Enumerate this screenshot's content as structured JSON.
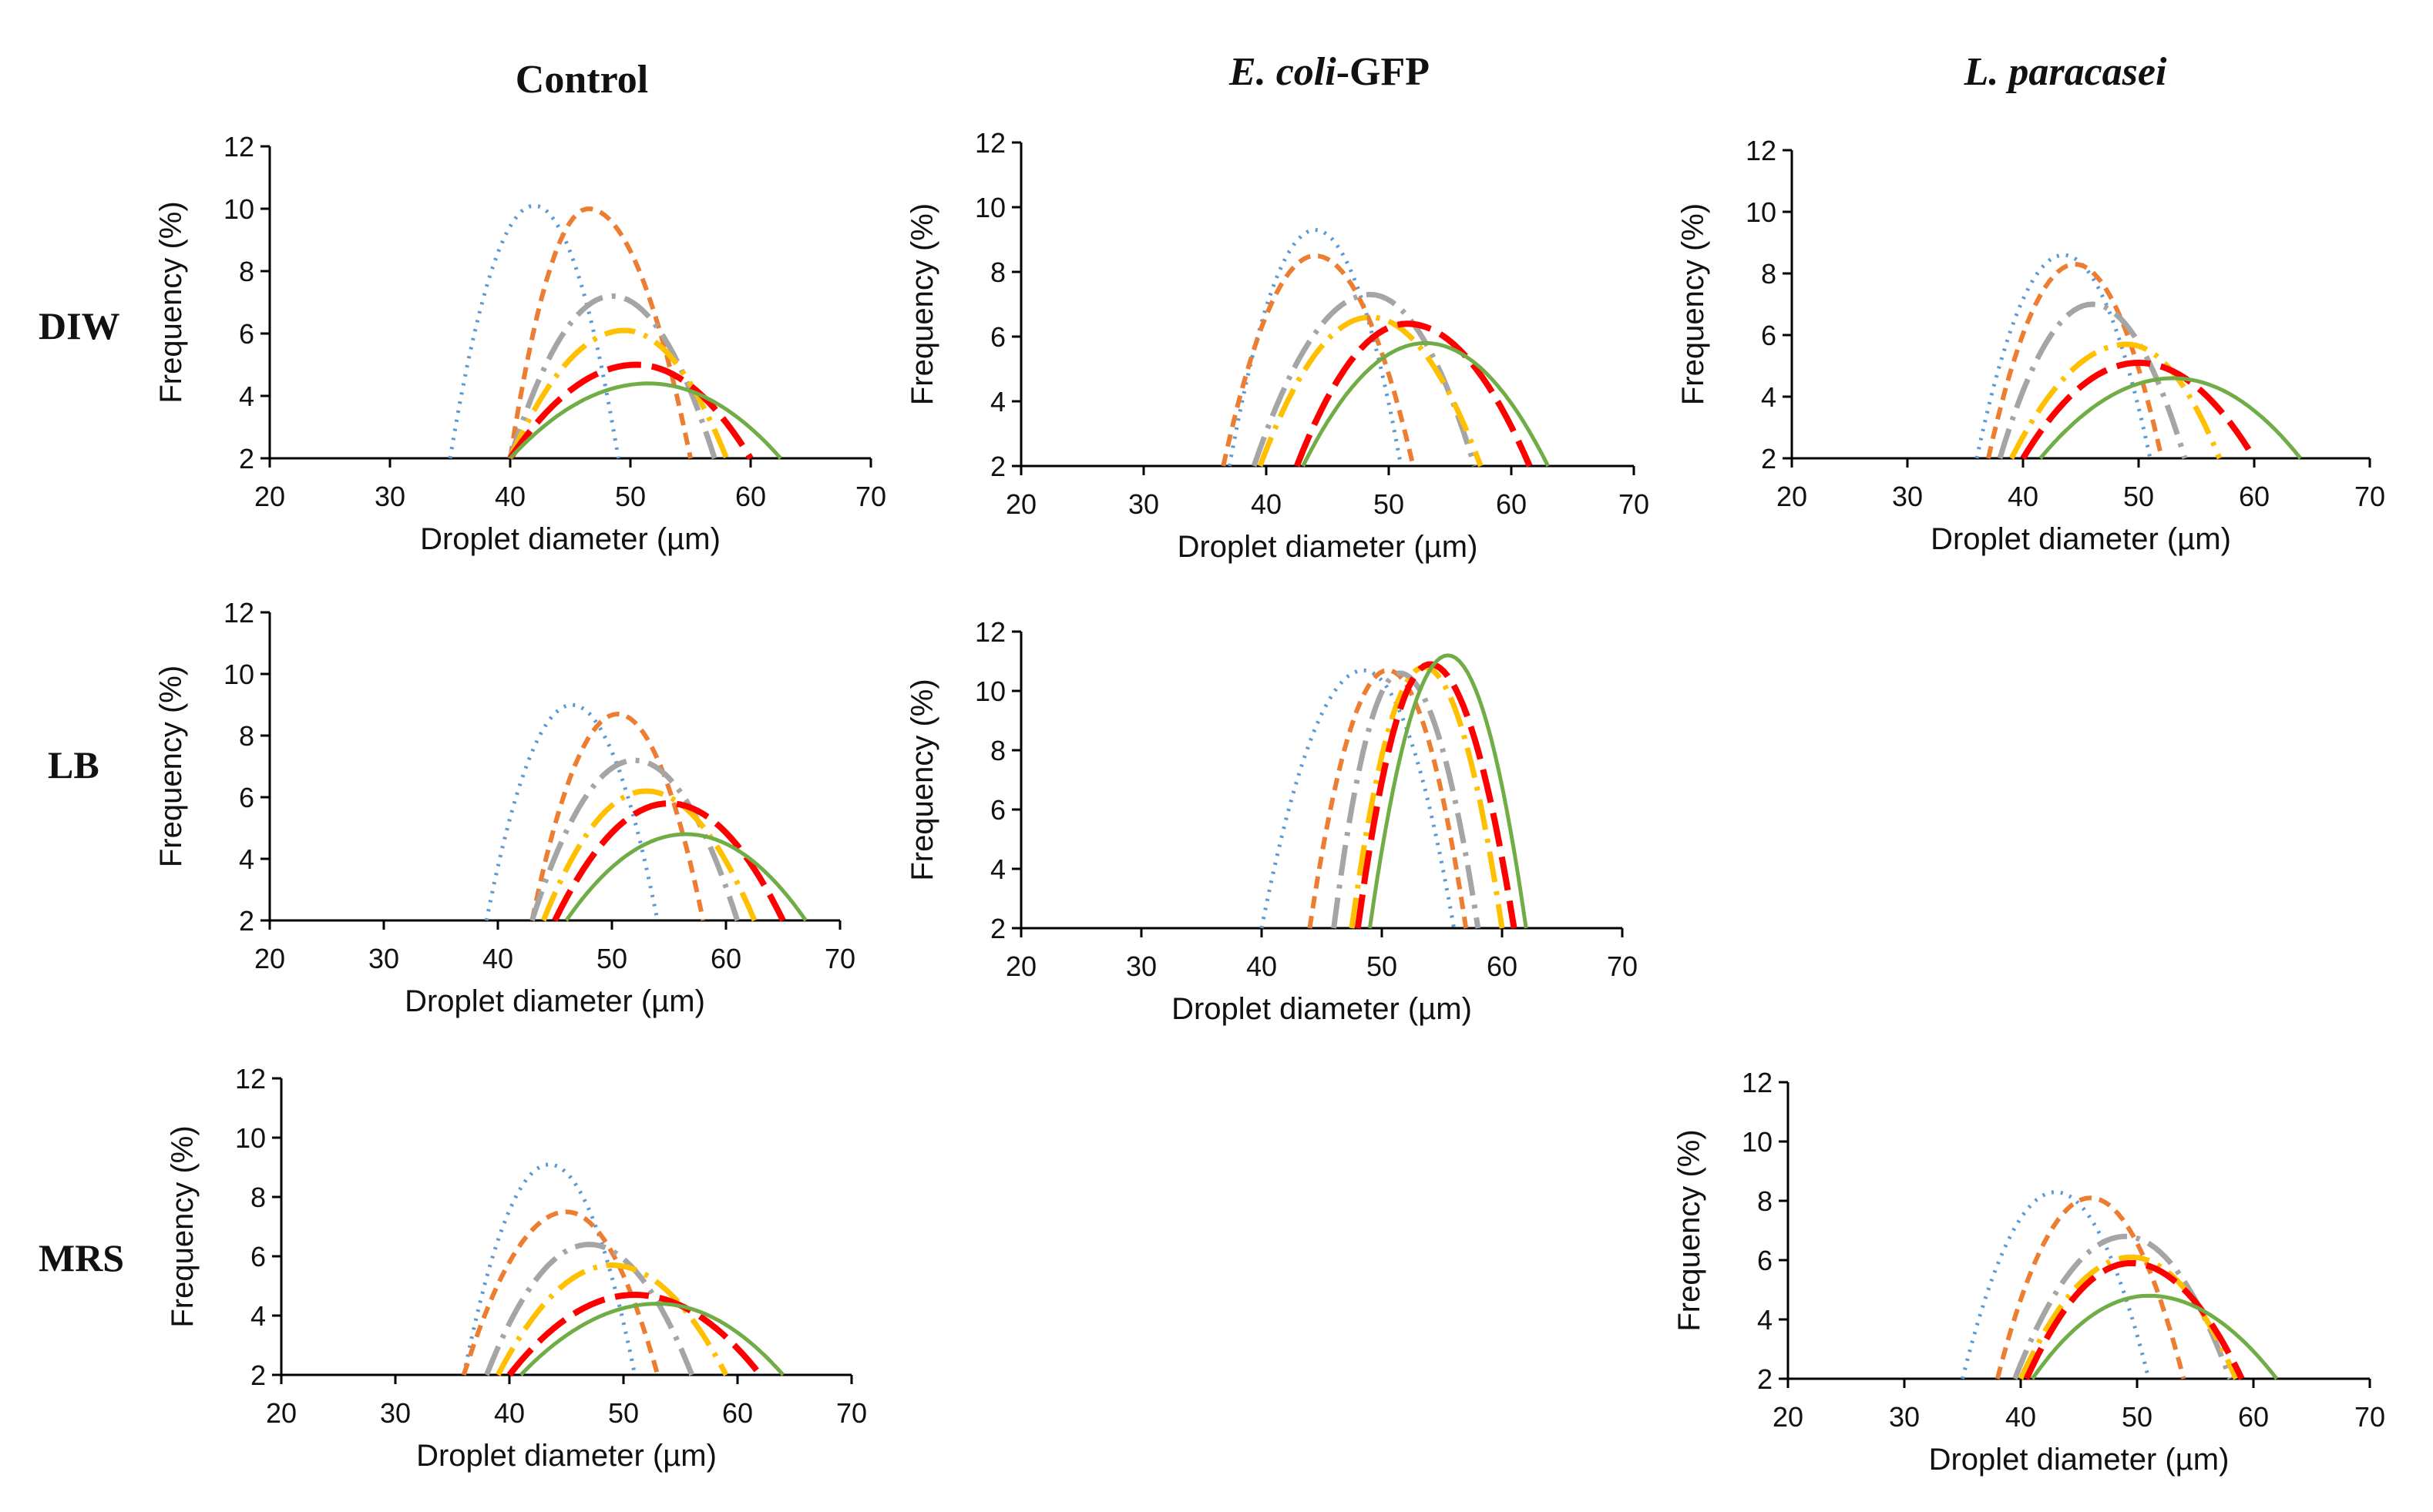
{
  "column_headers": {
    "control": "Control",
    "ecoli_italic": "E. coli",
    "ecoli_rest": "-GFP",
    "lparacasei": "L. paracasei"
  },
  "row_labels": {
    "diw": "DIW",
    "lb": "LB",
    "mrs": "MRS"
  },
  "series_styles": [
    {
      "color": "#5B9BD5",
      "dash": "dotted"
    },
    {
      "color": "#ED7D31",
      "dash": "short-dash"
    },
    {
      "color": "#A5A5A5",
      "dash": "long-dash-dot"
    },
    {
      "color": "#FFC000",
      "dash": "long-dash-dot"
    },
    {
      "color": "#FF0000",
      "dash": "long-dash"
    },
    {
      "color": "#70AD47",
      "dash": "solid"
    }
  ],
  "chart_data": [
    {
      "id": "DIW-Control",
      "type": "line",
      "row": "DIW",
      "column": "Control",
      "xlabel": "Droplet diameter (µm)",
      "ylabel": "Frequency (%)",
      "xlim": [
        20,
        70
      ],
      "ylim": [
        2,
        12
      ],
      "xticks": [
        "20",
        "30",
        "40",
        "50",
        "60",
        "70"
      ],
      "yticks": [
        "2",
        "4",
        "6",
        "8",
        "10",
        "12"
      ],
      "series": [
        {
          "center": 42,
          "peak": 10.1,
          "start": 35,
          "end": 49
        },
        {
          "center": 46.5,
          "peak": 10.0,
          "start": 40,
          "end": 55
        },
        {
          "center": 48.5,
          "peak": 7.2,
          "start": 40,
          "end": 57
        },
        {
          "center": 49.5,
          "peak": 6.1,
          "start": 40,
          "end": 58
        },
        {
          "center": 50.5,
          "peak": 5.0,
          "start": 40,
          "end": 60
        },
        {
          "center": 51.5,
          "peak": 4.4,
          "start": 40,
          "end": 62.5
        }
      ]
    },
    {
      "id": "DIW-Ecoli",
      "type": "line",
      "row": "DIW",
      "column": "E. coli-GFP",
      "xlabel": "Droplet diameter (µm)",
      "ylabel": "Frequency (%)",
      "xlim": [
        20,
        70
      ],
      "ylim": [
        2,
        12
      ],
      "xticks": [
        "20",
        "30",
        "40",
        "50",
        "60",
        "70"
      ],
      "yticks": [
        "2",
        "4",
        "6",
        "8",
        "10",
        "12"
      ],
      "series": [
        {
          "center": 44,
          "peak": 9.3,
          "start": 37,
          "end": 51
        },
        {
          "center": 44,
          "peak": 8.5,
          "start": 36.5,
          "end": 52
        },
        {
          "center": 48.5,
          "peak": 7.3,
          "start": 39,
          "end": 57
        },
        {
          "center": 48.5,
          "peak": 6.6,
          "start": 39.5,
          "end": 57.5
        },
        {
          "center": 51.5,
          "peak": 6.4,
          "start": 42.5,
          "end": 61.5
        },
        {
          "center": 53,
          "peak": 5.8,
          "start": 43,
          "end": 63
        }
      ]
    },
    {
      "id": "DIW-Lparacasei",
      "type": "line",
      "row": "DIW",
      "column": "L. paracasei",
      "xlabel": "Droplet diameter (µm)",
      "ylabel": "Frequency (%)",
      "xlim": [
        20,
        70
      ],
      "ylim": [
        2,
        12
      ],
      "xticks": [
        "20",
        "30",
        "40",
        "50",
        "60",
        "70"
      ],
      "yticks": [
        "2",
        "4",
        "6",
        "8",
        "10",
        "12"
      ],
      "series": [
        {
          "center": 43.5,
          "peak": 8.6,
          "start": 36,
          "end": 51
        },
        {
          "center": 44.5,
          "peak": 8.3,
          "start": 37,
          "end": 52
        },
        {
          "center": 46,
          "peak": 7.0,
          "start": 38,
          "end": 54
        },
        {
          "center": 49,
          "peak": 5.7,
          "start": 39,
          "end": 57
        },
        {
          "center": 50,
          "peak": 5.1,
          "start": 40,
          "end": 60
        },
        {
          "center": 53,
          "peak": 4.6,
          "start": 41.5,
          "end": 64
        }
      ]
    },
    {
      "id": "LB-Control",
      "type": "line",
      "row": "LB",
      "column": "Control",
      "xlabel": "Droplet diameter (µm)",
      "ylabel": "Frequency (%)",
      "xlim": [
        20,
        70
      ],
      "ylim": [
        2,
        12
      ],
      "xticks": [
        "20",
        "30",
        "40",
        "50",
        "60",
        "70"
      ],
      "yticks": [
        "2",
        "4",
        "6",
        "8",
        "10",
        "12"
      ],
      "series": [
        {
          "center": 46.5,
          "peak": 9.0,
          "start": 39,
          "end": 54
        },
        {
          "center": 50.5,
          "peak": 8.7,
          "start": 43,
          "end": 58
        },
        {
          "center": 52,
          "peak": 7.2,
          "start": 43,
          "end": 61
        },
        {
          "center": 53,
          "peak": 6.2,
          "start": 44,
          "end": 62.5
        },
        {
          "center": 55,
          "peak": 5.8,
          "start": 45,
          "end": 65
        },
        {
          "center": 56.5,
          "peak": 4.8,
          "start": 46,
          "end": 67
        }
      ]
    },
    {
      "id": "LB-Ecoli",
      "type": "line",
      "row": "LB",
      "column": "E. coli-GFP",
      "xlabel": "Droplet diameter (µm)",
      "ylabel": "Frequency (%)",
      "xlim": [
        20,
        70
      ],
      "ylim": [
        2,
        12
      ],
      "xticks": [
        "20",
        "30",
        "40",
        "50",
        "60",
        "70"
      ],
      "yticks": [
        "2",
        "4",
        "6",
        "8",
        "10",
        "12"
      ],
      "series": [
        {
          "center": 48.5,
          "peak": 10.7,
          "start": 40,
          "end": 56
        },
        {
          "center": 50.5,
          "peak": 10.7,
          "start": 44,
          "end": 57
        },
        {
          "center": 51.5,
          "peak": 10.6,
          "start": 46,
          "end": 58
        },
        {
          "center": 53.5,
          "peak": 10.8,
          "start": 47.5,
          "end": 60
        },
        {
          "center": 54,
          "peak": 10.9,
          "start": 48,
          "end": 61
        },
        {
          "center": 55.5,
          "peak": 11.2,
          "start": 49,
          "end": 62
        }
      ]
    },
    {
      "id": "MRS-Control",
      "type": "line",
      "row": "MRS",
      "column": "Control",
      "xlabel": "Droplet  diameter (µm)",
      "ylabel": "Frequency (%)",
      "xlim": [
        20,
        70
      ],
      "ylim": [
        2,
        12
      ],
      "xticks": [
        "20",
        "30",
        "40",
        "50",
        "60",
        "70"
      ],
      "yticks": [
        "2",
        "4",
        "6",
        "8",
        "10",
        "12"
      ],
      "series": [
        {
          "center": 43.5,
          "peak": 9.1,
          "start": 36,
          "end": 51
        },
        {
          "center": 45,
          "peak": 7.5,
          "start": 36,
          "end": 53
        },
        {
          "center": 47,
          "peak": 6.4,
          "start": 38,
          "end": 56
        },
        {
          "center": 49,
          "peak": 5.7,
          "start": 39,
          "end": 59
        },
        {
          "center": 51,
          "peak": 4.7,
          "start": 40,
          "end": 62
        },
        {
          "center": 53,
          "peak": 4.4,
          "start": 41,
          "end": 64
        }
      ]
    },
    {
      "id": "MRS-Lparacasei",
      "type": "line",
      "row": "MRS",
      "column": "L. paracasei",
      "xlabel": "Droplet diameter (µm)",
      "ylabel": "Frequency (%)",
      "xlim": [
        20,
        70
      ],
      "ylim": [
        2,
        12
      ],
      "xticks": [
        "20",
        "30",
        "40",
        "50",
        "60",
        "70"
      ],
      "yticks": [
        "2",
        "4",
        "6",
        "8",
        "10",
        "12"
      ],
      "series": [
        {
          "center": 43,
          "peak": 8.3,
          "start": 35,
          "end": 51
        },
        {
          "center": 46,
          "peak": 8.1,
          "start": 38,
          "end": 54
        },
        {
          "center": 49,
          "peak": 6.8,
          "start": 39.5,
          "end": 58
        },
        {
          "center": 49.5,
          "peak": 6.1,
          "start": 40,
          "end": 58.5
        },
        {
          "center": 49.5,
          "peak": 5.9,
          "start": 40.5,
          "end": 59
        },
        {
          "center": 51,
          "peak": 4.8,
          "start": 41,
          "end": 62
        }
      ]
    }
  ]
}
